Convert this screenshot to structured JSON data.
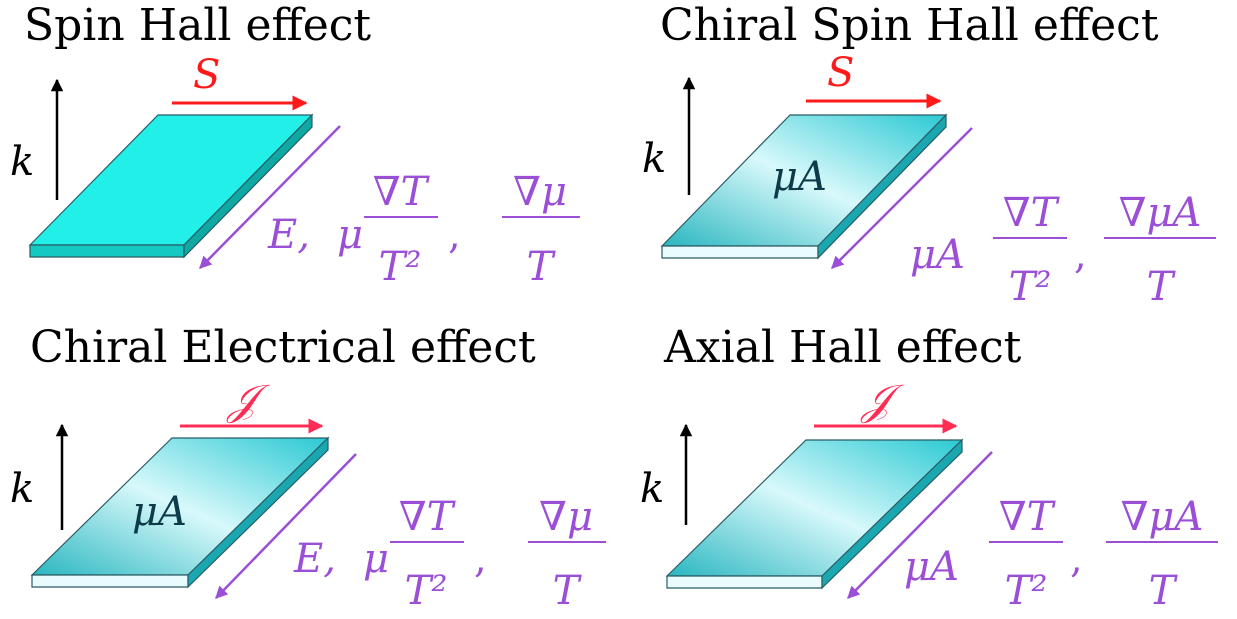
{
  "colors": {
    "title": "#000000",
    "spin_arrow": "#ff1a1a",
    "current_arrow": "#ff2d55",
    "field_arrow": "#9a4fd6",
    "slab_solid": "#22f0e8",
    "slab_gradient": [
      "#27b8c2",
      "#d6f8fa",
      "#2ccfd8"
    ],
    "slab_edge": "#2a5c66"
  },
  "panels": [
    {
      "title": "Spin Hall effect",
      "top_label": "S",
      "k_label": "k",
      "slab_label": "",
      "slab_style": "solid",
      "field": {
        "prefix": "E,",
        "coeff": "μ",
        "num1": "∇T",
        "den1": "T²",
        "sep": ",",
        "num2": "∇μ",
        "den2": "T"
      }
    },
    {
      "title": "Chiral Spin Hall effect",
      "top_label": "S",
      "k_label": "k",
      "slab_label": "μA",
      "slab_style": "gradient",
      "field": {
        "prefix": "",
        "coeff": "μA",
        "num1": "∇T",
        "den1": "T²",
        "sep": ",",
        "num2": "∇μA",
        "den2": "T"
      }
    },
    {
      "title": "Chiral Electrical effect",
      "top_label": "𝒥",
      "k_label": "k",
      "slab_label": "μA",
      "slab_style": "gradient",
      "field": {
        "prefix": "E,",
        "coeff": "μ",
        "num1": "∇T",
        "den1": "T²",
        "sep": ",",
        "num2": "∇μ",
        "den2": "T"
      }
    },
    {
      "title": "Axial Hall effect",
      "top_label": "𝒥",
      "k_label": "k",
      "slab_label": "",
      "slab_style": "gradient",
      "field": {
        "prefix": "",
        "coeff": "μA",
        "num1": "∇T",
        "den1": "T²",
        "sep": ",",
        "num2": "∇μA",
        "den2": "T"
      }
    }
  ]
}
